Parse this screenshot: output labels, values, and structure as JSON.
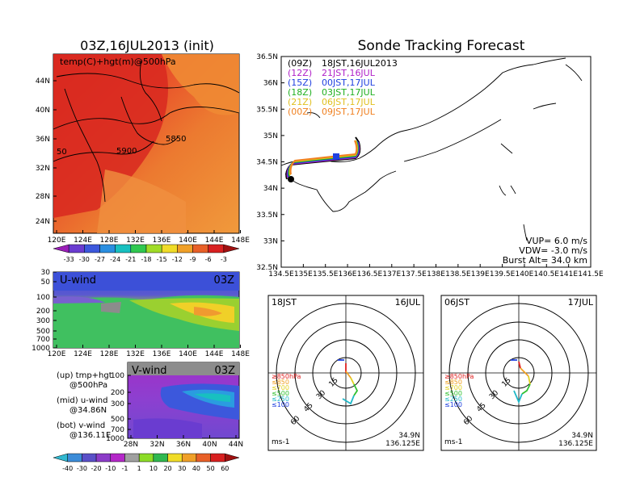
{
  "left_top": {
    "title": "03Z,16JUL2013 (init)",
    "label": "temp(C)+hgt(m)@500hPa",
    "lat_ticks": [
      "44N",
      "40N",
      "36N",
      "32N",
      "28N",
      "24N"
    ],
    "lon_ticks": [
      "120E",
      "124E",
      "128E",
      "132E",
      "136E",
      "140E",
      "144E",
      "148E"
    ],
    "contour_labels": [
      "50",
      "5900",
      "5850"
    ],
    "colorbar_labels": [
      "-33",
      "-30",
      "-27",
      "-24",
      "-21",
      "-18",
      "-15",
      "-12",
      "-9",
      "-6",
      "-3"
    ],
    "colorbar_colors": [
      "#9a1eb8",
      "#6a3cd0",
      "#3c58dc",
      "#2a8ee0",
      "#18c0c0",
      "#30c850",
      "#a0dc28",
      "#f0dc28",
      "#f0a028",
      "#e86028",
      "#d82020",
      "#a01010"
    ]
  },
  "left_mid": {
    "title": "U-wind",
    "time": "03Z",
    "p_ticks": [
      "30",
      "50",
      "100",
      "200",
      "300",
      "500",
      "700",
      "1000"
    ],
    "lon_ticks": [
      "120E",
      "124E",
      "128E",
      "132E",
      "136E",
      "140E",
      "144E",
      "148E"
    ]
  },
  "left_bot": {
    "title": "V-wind",
    "time": "03Z",
    "p_ticks": [
      "100",
      "200",
      "300",
      "500",
      "700",
      "1000"
    ],
    "lat_ticks": [
      "28N",
      "32N",
      "36N",
      "40N",
      "44N"
    ],
    "colorbar_labels": [
      "-40",
      "-30",
      "-20",
      "-10",
      "-1",
      "1",
      "10",
      "20",
      "30",
      "40",
      "50",
      "60"
    ],
    "colorbar_colors": [
      "#30b8d0",
      "#3c8cd8",
      "#5a50c8",
      "#8c3cc8",
      "#b428c8",
      "#a0a0a0",
      "#8cdc28",
      "#30b850",
      "#f0dc28",
      "#f0a028",
      "#e86028",
      "#d82020",
      "#a01010"
    ]
  },
  "legend_notes": [
    [
      "(up) tmp+hgt",
      "@500hPa"
    ],
    [
      "(mid) u-wind",
      "@34.86N"
    ],
    [
      "(bot) v-wind",
      "@136.11E"
    ]
  ],
  "right_top": {
    "title": "Sonde Tracking Forecast",
    "lat_ticks": [
      "36.5N",
      "36N",
      "35.5N",
      "35N",
      "34.5N",
      "34N",
      "33.5N",
      "33N",
      "32.5N"
    ],
    "lon_ticks": [
      "134.5E",
      "135E",
      "135.5E",
      "136E",
      "136.5E",
      "137E",
      "137.5E",
      "138E",
      "138.5E",
      "139E",
      "139.5E",
      "140E",
      "140.5E",
      "141E",
      "141.5E"
    ],
    "legend": [
      {
        "run": "(09Z)",
        "time": "18JST,16JUL2013",
        "color": "#000000"
      },
      {
        "run": "(12Z)",
        "time": "21JST,16JUL",
        "color": "#b020c8"
      },
      {
        "run": "(15Z)",
        "time": "00JST,17JUL",
        "color": "#2040e0"
      },
      {
        "run": "(18Z)",
        "time": "03JST,17JUL",
        "color": "#20b020"
      },
      {
        "run": "(21Z)",
        "time": "06JST,17JUL",
        "color": "#e0c020"
      },
      {
        "run": "(00Z)",
        "time": "09JST,17JUL",
        "color": "#f08020"
      }
    ],
    "params": [
      "VUP= 6.0 m/s",
      "VDW= -3.0 m/s",
      "Burst Alt= 34.0 km"
    ]
  },
  "hodo_left": {
    "time": "18JST",
    "date": "16JUL",
    "ring_labels": [
      "15",
      "30",
      "45",
      "60"
    ],
    "levels": [
      {
        "label": "≥850hPa",
        "color": "#e02020"
      },
      {
        "label": "≤850",
        "color": "#f0a020"
      },
      {
        "label": "≤700",
        "color": "#e0d020"
      },
      {
        "label": "≤500",
        "color": "#30c030"
      },
      {
        "label": "≤250",
        "color": "#20b8c8"
      },
      {
        "label": "≤100",
        "color": "#2040e0"
      }
    ],
    "unit": "ms-1",
    "lat": "34.9N",
    "lon": "136.125E"
  },
  "hodo_right": {
    "time": "06JST",
    "date": "17JUL",
    "ring_labels": [
      "15",
      "30",
      "45",
      "60"
    ],
    "levels": [
      {
        "label": "≥850hPa",
        "color": "#e02020"
      },
      {
        "label": "≤850",
        "color": "#f0a020"
      },
      {
        "label": "≤700",
        "color": "#e0d020"
      },
      {
        "label": "≤500",
        "color": "#30c030"
      },
      {
        "label": "≤250",
        "color": "#20b8c8"
      },
      {
        "label": "≤100",
        "color": "#2040e0"
      }
    ],
    "unit": "ms-1",
    "lat": "34.9N",
    "lon": "136.125E"
  }
}
